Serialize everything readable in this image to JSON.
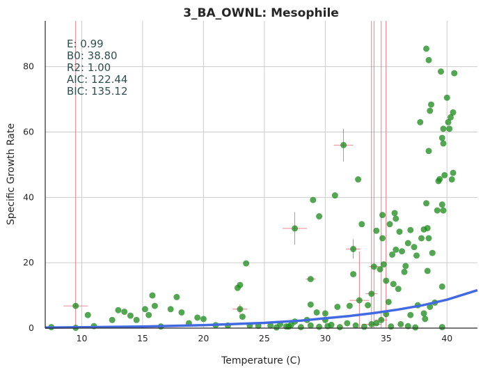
{
  "chart_data": {
    "type": "scatter",
    "title": "3_BA_OWNL: Mesophile",
    "xlabel": "Temperature (C)",
    "ylabel": "Specific Growth Rate",
    "xlim": [
      7,
      42.5
    ],
    "ylim": [
      0,
      94
    ],
    "x_ticks": [
      10,
      15,
      20,
      25,
      30,
      35,
      40
    ],
    "y_ticks": [
      0,
      20,
      40,
      60,
      80
    ],
    "grid": true,
    "colors": {
      "points": "#1a8a1a",
      "fit": "#4169e1",
      "errorbars": "#e06070",
      "stats": "#2f4f4f"
    },
    "stats": [
      {
        "label": "E:",
        "value": "0.99"
      },
      {
        "label": "B0:",
        "value": "38.80"
      },
      {
        "label": "R2:",
        "value": "1.00"
      },
      {
        "label": "AIC:",
        "value": "122.44"
      },
      {
        "label": "BIC:",
        "value": "135.12"
      }
    ],
    "fit_curve": {
      "x": [
        7,
        10,
        15,
        20,
        25,
        28,
        30,
        32,
        34,
        36,
        38,
        40,
        42.5
      ],
      "y": [
        0.15,
        0.25,
        0.5,
        0.9,
        1.6,
        2.3,
        3.0,
        3.7,
        4.6,
        5.7,
        7.0,
        8.7,
        11.6
      ]
    },
    "points": [
      [
        7.5,
        0.3,
        0,
        0
      ],
      [
        9.5,
        0.1,
        0,
        0
      ],
      [
        9.5,
        6.8,
        1.0,
        300
      ],
      [
        10.5,
        4.0,
        0,
        0
      ],
      [
        11,
        0.6,
        0,
        0
      ],
      [
        12.5,
        2.5,
        0,
        0
      ],
      [
        13,
        5.5,
        0,
        0
      ],
      [
        13.5,
        5.0,
        0,
        0
      ],
      [
        14,
        3.8,
        0,
        0
      ],
      [
        14.5,
        2.5,
        0,
        0
      ],
      [
        15.2,
        5.8,
        0,
        0
      ],
      [
        15.5,
        4.0,
        0,
        0
      ],
      [
        15.8,
        10.0,
        0,
        0
      ],
      [
        16,
        6.8,
        0,
        0
      ],
      [
        16.5,
        0.5,
        0,
        0
      ],
      [
        17.3,
        5.8,
        0,
        0
      ],
      [
        17.8,
        9.5,
        0,
        0
      ],
      [
        18.2,
        4.8,
        0,
        0
      ],
      [
        18.8,
        1.5,
        0,
        0
      ],
      [
        19.5,
        3.2,
        0,
        0
      ],
      [
        20,
        2.8,
        0,
        0
      ],
      [
        21,
        0.9,
        0,
        0
      ],
      [
        22,
        0.8,
        0,
        0
      ],
      [
        22.8,
        12.3,
        0,
        0
      ],
      [
        23,
        13.2,
        0,
        0
      ],
      [
        23,
        5.8,
        0.6,
        1.5
      ],
      [
        23.2,
        3.5,
        0,
        0
      ],
      [
        23.5,
        19.8,
        0,
        0
      ],
      [
        23.8,
        0.8,
        0,
        0
      ],
      [
        24.5,
        0.7,
        0,
        0
      ],
      [
        25.5,
        0.8,
        0,
        0
      ],
      [
        26.3,
        1.2,
        0,
        0
      ],
      [
        27,
        0.5,
        0,
        0
      ],
      [
        27.5,
        2.0,
        0,
        0
      ],
      [
        27.5,
        30.5,
        1.0,
        5.0
      ],
      [
        28.5,
        2.5,
        0,
        0
      ],
      [
        28.8,
        7.2,
        0,
        0
      ],
      [
        28.8,
        15.0,
        0.4,
        0
      ],
      [
        29,
        39.2,
        0,
        0
      ],
      [
        29.3,
        4.8,
        0,
        0
      ],
      [
        29.5,
        34.2,
        0,
        0
      ],
      [
        30,
        4.5,
        0,
        0
      ],
      [
        30,
        2.5,
        0,
        0
      ],
      [
        30.5,
        1.0,
        0,
        0
      ],
      [
        30.8,
        40.6,
        0,
        0
      ],
      [
        31,
        6.5,
        0,
        0
      ],
      [
        31.5,
        56.0,
        0.8,
        5.0
      ],
      [
        32,
        6.8,
        0,
        0
      ],
      [
        32.3,
        24.2,
        0.6,
        3.0
      ],
      [
        32.3,
        16.5,
        0,
        0
      ],
      [
        32.7,
        45.5,
        0,
        0
      ],
      [
        32.8,
        8.5,
        0.8,
        15.0
      ],
      [
        33,
        31.8,
        0,
        0
      ],
      [
        33.5,
        7.0,
        0,
        0
      ],
      [
        33.8,
        1.2,
        0.8,
        160
      ],
      [
        33.8,
        10.5,
        0.5,
        0
      ],
      [
        34,
        18.8,
        0.4,
        100
      ],
      [
        34.2,
        29.8,
        0,
        0
      ],
      [
        34.5,
        18.0,
        0,
        0
      ],
      [
        34.6,
        2.5,
        0.5,
        100
      ],
      [
        34.7,
        34.6,
        0,
        0
      ],
      [
        34.7,
        27.5,
        0,
        0
      ],
      [
        34.8,
        19.5,
        0,
        0
      ],
      [
        35,
        14.5,
        0,
        0
      ],
      [
        35,
        4.3,
        0,
        100
      ],
      [
        35.2,
        8.0,
        0,
        0
      ],
      [
        35.3,
        31.8,
        0,
        0
      ],
      [
        35.5,
        22.5,
        0,
        0
      ],
      [
        35.6,
        13.5,
        0,
        0
      ],
      [
        35.7,
        35.2,
        0,
        0
      ],
      [
        35.8,
        24.0,
        0,
        0
      ],
      [
        35.8,
        33.5,
        0,
        0
      ],
      [
        36,
        12.0,
        0,
        0
      ],
      [
        36.1,
        29.5,
        0,
        0
      ],
      [
        36.3,
        23.5,
        0,
        0
      ],
      [
        36.5,
        17.2,
        0,
        0
      ],
      [
        36.6,
        19.0,
        0,
        0
      ],
      [
        36.8,
        26.0,
        0,
        0
      ],
      [
        37,
        30.0,
        0,
        0
      ],
      [
        37,
        4.0,
        0,
        0
      ],
      [
        37.3,
        24.8,
        0,
        0
      ],
      [
        37.5,
        22.2,
        0,
        0
      ],
      [
        37.6,
        7.0,
        0,
        0
      ],
      [
        37.8,
        63.0,
        0,
        0
      ],
      [
        37.9,
        27.5,
        0,
        0
      ],
      [
        38.1,
        30.2,
        0,
        0
      ],
      [
        38.1,
        4.5,
        0,
        0
      ],
      [
        38.2,
        2.8,
        0,
        0
      ],
      [
        38.3,
        38.2,
        0,
        0
      ],
      [
        38.4,
        30.6,
        0,
        0
      ],
      [
        38.5,
        27.5,
        0,
        0
      ],
      [
        38.4,
        17.5,
        0,
        0
      ],
      [
        38.5,
        54.2,
        0,
        0
      ],
      [
        38.6,
        66.5,
        0,
        0
      ],
      [
        38.7,
        68.4,
        0,
        0
      ],
      [
        38.3,
        85.5,
        0,
        0
      ],
      [
        38.5,
        82.0,
        0,
        0
      ],
      [
        38.6,
        6.5,
        0,
        0
      ],
      [
        38.8,
        23.0,
        0,
        0
      ],
      [
        39,
        7.8,
        0,
        0
      ],
      [
        39.2,
        36.0,
        0,
        0
      ],
      [
        39.3,
        45.0,
        0,
        0
      ],
      [
        39.4,
        45.6,
        0,
        0
      ],
      [
        39.5,
        78.5,
        0,
        0
      ],
      [
        39.6,
        58.2,
        0,
        0
      ],
      [
        39.6,
        12.7,
        0,
        0
      ],
      [
        39.6,
        37.8,
        0,
        0
      ],
      [
        39.6,
        0.3,
        0,
        0
      ],
      [
        39.7,
        61.0,
        0,
        0
      ],
      [
        39.7,
        56.5,
        0,
        0
      ],
      [
        39.7,
        36.0,
        0,
        0
      ],
      [
        39.8,
        46.8,
        0,
        0
      ],
      [
        40,
        70.5,
        0,
        0
      ],
      [
        40.1,
        63.0,
        0,
        0
      ],
      [
        40.2,
        61.0,
        0,
        0
      ],
      [
        40.3,
        64.5,
        0,
        0
      ],
      [
        40.4,
        45.5,
        0,
        0
      ],
      [
        40.5,
        66.0,
        0,
        0
      ],
      [
        40.6,
        78.0,
        0,
        0
      ],
      [
        40.5,
        47.5,
        0,
        0
      ],
      [
        26,
        0.2,
        0,
        0
      ],
      [
        26.8,
        0.5,
        0,
        0
      ],
      [
        27.2,
        1.0,
        0,
        0
      ],
      [
        28,
        0.3,
        0,
        0
      ],
      [
        28.8,
        0.8,
        0,
        0
      ],
      [
        29.5,
        0.4,
        0,
        0
      ],
      [
        30.2,
        0.6,
        0,
        0
      ],
      [
        31.2,
        0.3,
        0,
        0
      ],
      [
        31.8,
        1.5,
        0,
        0
      ],
      [
        32.5,
        0.8,
        0,
        0
      ],
      [
        33.2,
        0.4,
        0,
        0
      ],
      [
        34.2,
        1.5,
        0,
        0
      ],
      [
        35.4,
        0.5,
        0,
        0
      ],
      [
        36.2,
        1.2,
        0,
        0
      ],
      [
        36.8,
        0.6,
        0,
        0
      ],
      [
        37.4,
        0.2,
        0,
        0
      ]
    ]
  }
}
